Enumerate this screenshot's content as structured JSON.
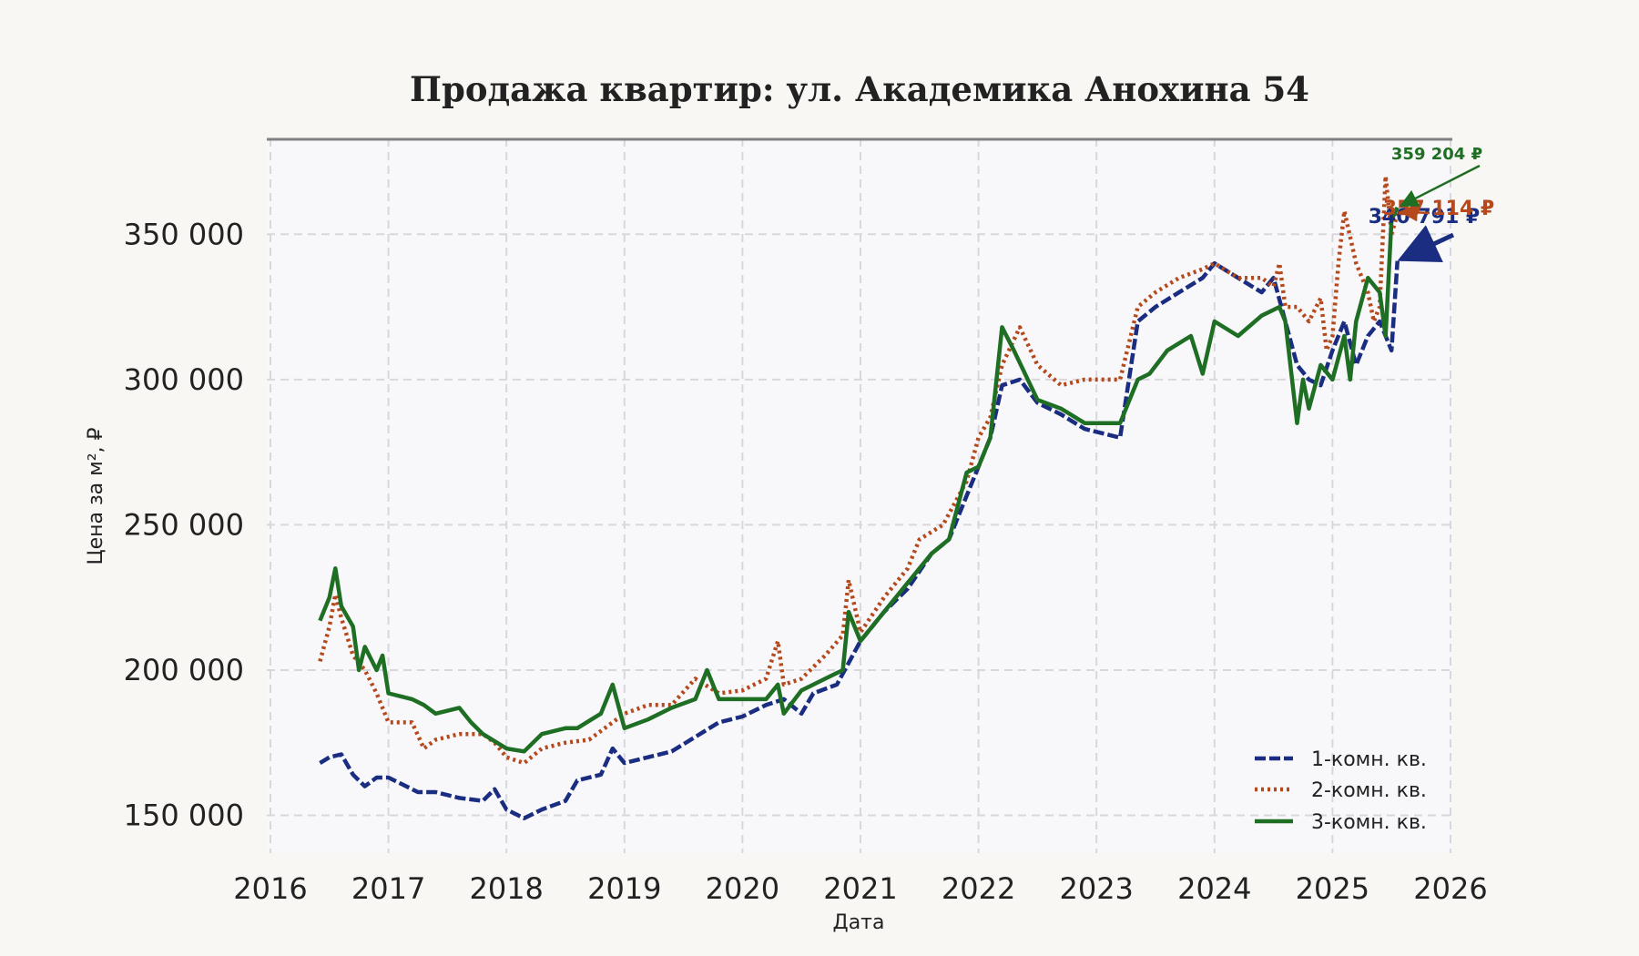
{
  "chart_data": {
    "type": "line",
    "title": "Продажа квартир: ул. Академика Анохина 54",
    "xlabel": "Дата",
    "ylabel": "Цена за м², ₽",
    "xlim": [
      2016.0,
      2026.0
    ],
    "ylim": [
      137000,
      383000
    ],
    "x_ticks": [
      2016,
      2017,
      2018,
      2019,
      2020,
      2021,
      2022,
      2023,
      2024,
      2025,
      2026
    ],
    "y_ticks": [
      150000,
      200000,
      250000,
      300000,
      350000
    ],
    "x_tick_labels": [
      "2016",
      "2017",
      "2018",
      "2019",
      "2020",
      "2021",
      "2022",
      "2023",
      "2024",
      "2025",
      "2026"
    ],
    "y_tick_labels": [
      "150 000",
      "200 000",
      "250 000",
      "300 000",
      "350 000"
    ],
    "grid": true,
    "legend_position": "bottom-right",
    "series": [
      {
        "name": "1-комн. кв.",
        "color": "#1a2d80",
        "style": "dashed",
        "x": [
          2016.42,
          2016.5,
          2016.6,
          2016.7,
          2016.8,
          2016.9,
          2017.0,
          2017.1,
          2017.25,
          2017.4,
          2017.6,
          2017.8,
          2017.9,
          2018.0,
          2018.15,
          2018.3,
          2018.5,
          2018.6,
          2018.8,
          2018.9,
          2019.0,
          2019.2,
          2019.4,
          2019.6,
          2019.8,
          2020.0,
          2020.2,
          2020.35,
          2020.5,
          2020.6,
          2020.8,
          2021.0,
          2021.2,
          2021.4,
          2021.6,
          2021.75,
          2021.9,
          2022.0,
          2022.1,
          2022.2,
          2022.35,
          2022.5,
          2022.7,
          2022.9,
          2023.0,
          2023.2,
          2023.35,
          2023.5,
          2023.7,
          2023.9,
          2024.0,
          2024.2,
          2024.4,
          2024.5,
          2024.6,
          2024.7,
          2024.8,
          2024.9,
          2025.0,
          2025.1,
          2025.2,
          2025.3,
          2025.4,
          2025.5,
          2025.55
        ],
        "values": [
          168000,
          170000,
          171000,
          164000,
          160000,
          163000,
          163000,
          161000,
          158000,
          158000,
          156000,
          155000,
          159000,
          152000,
          149000,
          152000,
          155000,
          162000,
          164000,
          173000,
          168000,
          170000,
          172000,
          177000,
          182000,
          184000,
          188000,
          190000,
          185000,
          192000,
          195000,
          210000,
          220000,
          228000,
          240000,
          245000,
          260000,
          270000,
          280000,
          298000,
          300000,
          292000,
          288000,
          283000,
          282000,
          280000,
          320000,
          325000,
          330000,
          335000,
          340000,
          335000,
          330000,
          335000,
          320000,
          305000,
          300000,
          298000,
          310000,
          320000,
          305000,
          315000,
          320000,
          310000,
          340791
        ]
      },
      {
        "name": "2-комн. кв.",
        "color": "#b5491c",
        "style": "dotted",
        "x": [
          2016.42,
          2016.5,
          2016.55,
          2016.6,
          2016.7,
          2016.8,
          2016.9,
          2017.0,
          2017.2,
          2017.3,
          2017.4,
          2017.6,
          2017.8,
          2017.9,
          2018.0,
          2018.15,
          2018.3,
          2018.5,
          2018.7,
          2018.9,
          2019.0,
          2019.2,
          2019.4,
          2019.6,
          2019.8,
          2020.0,
          2020.2,
          2020.3,
          2020.35,
          2020.5,
          2020.7,
          2020.85,
          2020.9,
          2021.0,
          2021.2,
          2021.4,
          2021.5,
          2021.7,
          2021.9,
          2022.0,
          2022.1,
          2022.2,
          2022.35,
          2022.5,
          2022.7,
          2022.9,
          2023.0,
          2023.2,
          2023.35,
          2023.5,
          2023.7,
          2023.9,
          2024.0,
          2024.2,
          2024.4,
          2024.5,
          2024.55,
          2024.6,
          2024.7,
          2024.8,
          2024.9,
          2024.95,
          2025.0,
          2025.05,
          2025.1,
          2025.2,
          2025.3,
          2025.35,
          2025.4,
          2025.45,
          2025.5,
          2025.55
        ],
        "values": [
          203000,
          215000,
          226000,
          218000,
          205000,
          200000,
          192000,
          182000,
          182000,
          173000,
          176000,
          178000,
          178000,
          175000,
          170000,
          168000,
          173000,
          175000,
          176000,
          182000,
          185000,
          188000,
          188000,
          197000,
          192000,
          193000,
          197000,
          210000,
          195000,
          197000,
          205000,
          212000,
          231000,
          213000,
          225000,
          235000,
          245000,
          250000,
          265000,
          280000,
          287000,
          305000,
          318000,
          305000,
          298000,
          300000,
          300000,
          300000,
          325000,
          330000,
          335000,
          338000,
          340000,
          335000,
          335000,
          332000,
          340000,
          325000,
          325000,
          320000,
          328000,
          310000,
          315000,
          340000,
          358000,
          340000,
          330000,
          320000,
          325000,
          370000,
          350000,
          357114
        ]
      },
      {
        "name": "3-комн. кв.",
        "color": "#1e6e24",
        "style": "solid",
        "x": [
          2016.42,
          2016.5,
          2016.55,
          2016.6,
          2016.7,
          2016.75,
          2016.8,
          2016.9,
          2016.95,
          2017.0,
          2017.2,
          2017.3,
          2017.4,
          2017.6,
          2017.7,
          2017.8,
          2018.0,
          2018.15,
          2018.3,
          2018.5,
          2018.6,
          2018.8,
          2018.9,
          2019.0,
          2019.2,
          2019.4,
          2019.6,
          2019.7,
          2019.8,
          2020.0,
          2020.2,
          2020.3,
          2020.35,
          2020.5,
          2020.7,
          2020.85,
          2020.9,
          2021.0,
          2021.2,
          2021.4,
          2021.6,
          2021.75,
          2021.9,
          2022.0,
          2022.1,
          2022.2,
          2022.3,
          2022.5,
          2022.7,
          2022.9,
          2023.0,
          2023.2,
          2023.35,
          2023.45,
          2023.6,
          2023.8,
          2023.9,
          2024.0,
          2024.2,
          2024.4,
          2024.55,
          2024.6,
          2024.7,
          2024.75,
          2024.8,
          2024.9,
          2025.0,
          2025.1,
          2025.15,
          2025.2,
          2025.3,
          2025.4,
          2025.45,
          2025.5,
          2025.55
        ],
        "values": [
          217000,
          225000,
          235000,
          222000,
          215000,
          200000,
          208000,
          200000,
          205000,
          192000,
          190000,
          188000,
          185000,
          187000,
          182000,
          178000,
          173000,
          172000,
          178000,
          180000,
          180000,
          185000,
          195000,
          180000,
          183000,
          187000,
          190000,
          200000,
          190000,
          190000,
          190000,
          195000,
          185000,
          193000,
          197000,
          200000,
          220000,
          210000,
          220000,
          230000,
          240000,
          245000,
          268000,
          270000,
          280000,
          318000,
          310000,
          293000,
          290000,
          285000,
          285000,
          285000,
          300000,
          302000,
          310000,
          315000,
          302000,
          320000,
          315000,
          322000,
          325000,
          320000,
          285000,
          300000,
          290000,
          305000,
          300000,
          315000,
          300000,
          320000,
          335000,
          330000,
          315000,
          355000,
          359204
        ]
      }
    ],
    "annotations": [
      {
        "series": "1-комн. кв.",
        "label": "340 791 ₽",
        "color": "#1a2d80"
      },
      {
        "series": "2-комн. кв.",
        "label": "357 114 ₽",
        "color": "#b5491c"
      },
      {
        "series": "3-комн. кв.",
        "label": "359 204 ₽",
        "color": "#1e6e24"
      }
    ]
  }
}
